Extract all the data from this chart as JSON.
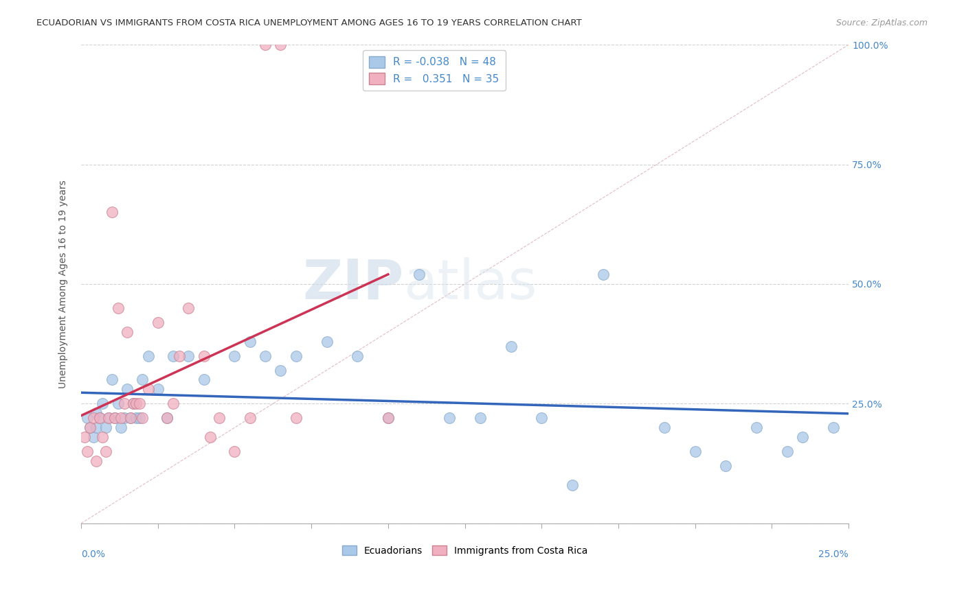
{
  "title": "ECUADORIAN VS IMMIGRANTS FROM COSTA RICA UNEMPLOYMENT AMONG AGES 16 TO 19 YEARS CORRELATION CHART",
  "source": "Source: ZipAtlas.com",
  "ylabel": "Unemployment Among Ages 16 to 19 years",
  "blue_R": -0.038,
  "blue_N": 48,
  "pink_R": 0.351,
  "pink_N": 35,
  "blue_color": "#aac8e8",
  "pink_color": "#f0b0c0",
  "blue_edge_color": "#88aacc",
  "pink_edge_color": "#cc8090",
  "blue_line_color": "#3366bb",
  "pink_line_color": "#cc3355",
  "ref_line_color": "#cccccc",
  "legend_label_blue": "Ecuadorians",
  "legend_label_pink": "Immigrants from Costa Rica",
  "watermark_zip": "ZIP",
  "watermark_atlas": "atlas",
  "xlim": [
    0,
    0.25
  ],
  "ylim": [
    0,
    1.0
  ],
  "blue_scatter_x": [
    0.002,
    0.003,
    0.004,
    0.005,
    0.005,
    0.006,
    0.007,
    0.008,
    0.009,
    0.01,
    0.011,
    0.012,
    0.013,
    0.014,
    0.015,
    0.016,
    0.017,
    0.018,
    0.019,
    0.02,
    0.022,
    0.025,
    0.028,
    0.03,
    0.035,
    0.04,
    0.05,
    0.055,
    0.06,
    0.065,
    0.07,
    0.08,
    0.09,
    0.1,
    0.11,
    0.12,
    0.13,
    0.14,
    0.15,
    0.16,
    0.17,
    0.19,
    0.2,
    0.21,
    0.22,
    0.23,
    0.235,
    0.245
  ],
  "blue_scatter_y": [
    0.22,
    0.2,
    0.18,
    0.23,
    0.2,
    0.22,
    0.25,
    0.2,
    0.22,
    0.3,
    0.22,
    0.25,
    0.2,
    0.22,
    0.28,
    0.22,
    0.25,
    0.22,
    0.22,
    0.3,
    0.35,
    0.28,
    0.22,
    0.35,
    0.35,
    0.3,
    0.35,
    0.38,
    0.35,
    0.32,
    0.35,
    0.38,
    0.35,
    0.22,
    0.52,
    0.22,
    0.22,
    0.37,
    0.22,
    0.08,
    0.52,
    0.2,
    0.15,
    0.12,
    0.2,
    0.15,
    0.18,
    0.2
  ],
  "pink_scatter_x": [
    0.001,
    0.002,
    0.003,
    0.004,
    0.005,
    0.006,
    0.007,
    0.008,
    0.009,
    0.01,
    0.011,
    0.012,
    0.013,
    0.014,
    0.015,
    0.016,
    0.017,
    0.018,
    0.019,
    0.02,
    0.022,
    0.025,
    0.028,
    0.03,
    0.032,
    0.035,
    0.04,
    0.042,
    0.045,
    0.05,
    0.055,
    0.06,
    0.065,
    0.07,
    0.1
  ],
  "pink_scatter_y": [
    0.18,
    0.15,
    0.2,
    0.22,
    0.13,
    0.22,
    0.18,
    0.15,
    0.22,
    0.65,
    0.22,
    0.45,
    0.22,
    0.25,
    0.4,
    0.22,
    0.25,
    0.25,
    0.25,
    0.22,
    0.28,
    0.42,
    0.22,
    0.25,
    0.35,
    0.45,
    0.35,
    0.18,
    0.22,
    0.15,
    0.22,
    1.0,
    1.0,
    0.22,
    0.22
  ]
}
